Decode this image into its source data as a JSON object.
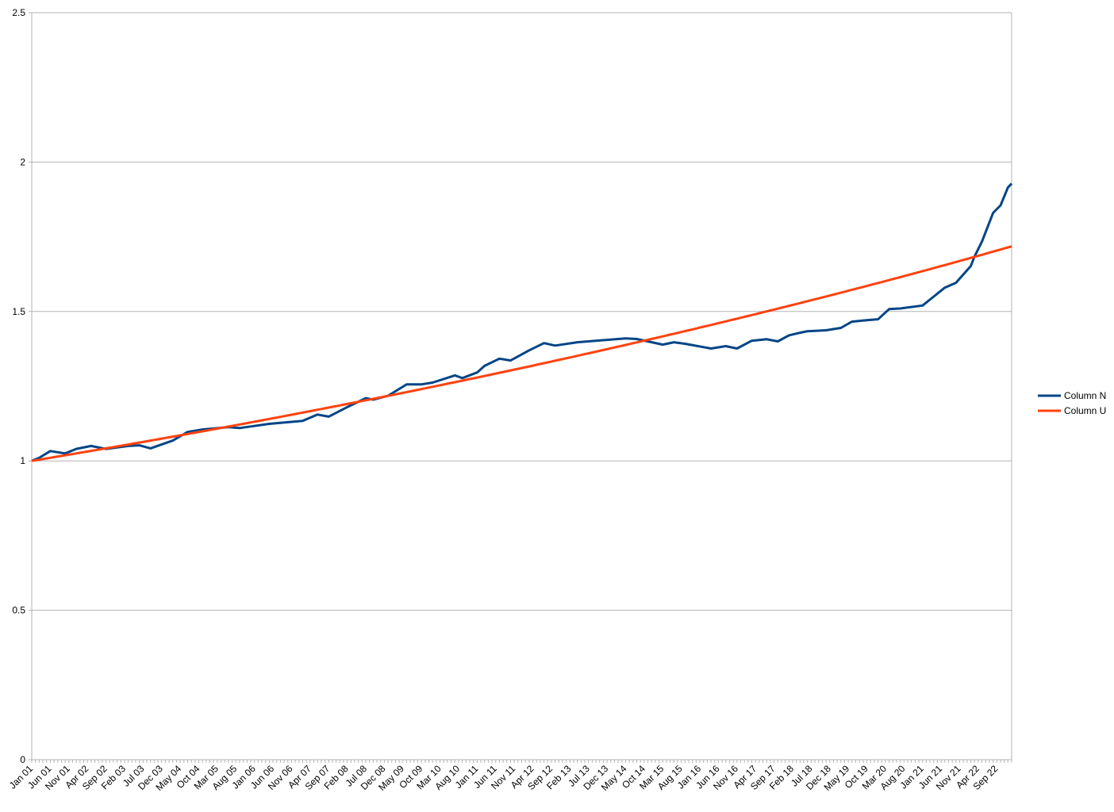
{
  "chart_data": {
    "type": "line",
    "title": "",
    "xlabel": "",
    "ylabel": "",
    "ylim": [
      0,
      2.5
    ],
    "y_ticks": [
      "0",
      "0.5",
      "1",
      "1.5",
      "2",
      "2.5"
    ],
    "y_tick_values": [
      0,
      0.5,
      1,
      1.5,
      2,
      2.5
    ],
    "x_range": [
      "Jan 01",
      "Jan 23"
    ],
    "x_tick_interval": "monthly",
    "x_tick_labels": [
      "Jan 01",
      "Jun 01",
      "Nov 01",
      "Apr 02",
      "Sep 02",
      "Feb 03",
      "Jul 03",
      "Dec 03",
      "May 04",
      "Oct 04",
      "Mar 05",
      "Aug 05",
      "Jan 06",
      "Jun 06",
      "Nov 06",
      "Apr 07",
      "Sep 07",
      "Feb 08",
      "Jul 08",
      "Dec 08",
      "May 09",
      "Oct 09",
      "Mar 10",
      "Aug 10",
      "Jan 11",
      "Jun 11",
      "Nov 11",
      "Apr 12",
      "Sep 12",
      "Feb 13",
      "Jul 13",
      "Dec 13",
      "May 14",
      "Oct 14",
      "Mar 15",
      "Aug 15",
      "Jan 16",
      "Jun 16",
      "Nov 16",
      "Apr 17",
      "Sep 17",
      "Feb 18",
      "Jul 18",
      "Dec 18",
      "May 19",
      "Oct 19",
      "Mar 20",
      "Aug 20",
      "Jan 21",
      "Jun 21",
      "Nov 21",
      "Apr 22",
      "Sep 22"
    ],
    "grid": "horizontal",
    "legend_position": "right",
    "series": [
      {
        "name": "Column N",
        "color": "#004586",
        "points": [
          [
            "Jan 01",
            1.0
          ],
          [
            "Mar 01",
            1.01
          ],
          [
            "Jun 01",
            1.033
          ],
          [
            "Oct 01",
            1.025
          ],
          [
            "Jan 02",
            1.04
          ],
          [
            "May 02",
            1.05
          ],
          [
            "Sep 02",
            1.04
          ],
          [
            "Mar 03",
            1.05
          ],
          [
            "Jun 03",
            1.052
          ],
          [
            "Sep 03",
            1.042
          ],
          [
            "Mar 04",
            1.068
          ],
          [
            "Jul 04",
            1.097
          ],
          [
            "Nov 04",
            1.105
          ],
          [
            "Jun 05",
            1.113
          ],
          [
            "Sep 05",
            1.11
          ],
          [
            "May 06",
            1.124
          ],
          [
            "Feb 07",
            1.134
          ],
          [
            "Jun 07",
            1.155
          ],
          [
            "Sep 07",
            1.148
          ],
          [
            "Feb 08",
            1.18
          ],
          [
            "Jul 08",
            1.21
          ],
          [
            "Sep 08",
            1.205
          ],
          [
            "Jan 09",
            1.218
          ],
          [
            "Jun 09",
            1.256
          ],
          [
            "Oct 09",
            1.256
          ],
          [
            "Jan 10",
            1.262
          ],
          [
            "Jul 10",
            1.286
          ],
          [
            "Sep 10",
            1.277
          ],
          [
            "Jan 11",
            1.296
          ],
          [
            "Mar 11",
            1.318
          ],
          [
            "Jul 11",
            1.342
          ],
          [
            "Oct 11",
            1.336
          ],
          [
            "Mar 12",
            1.37
          ],
          [
            "Jul 12",
            1.394
          ],
          [
            "Oct 12",
            1.386
          ],
          [
            "Apr 13",
            1.397
          ],
          [
            "May 14",
            1.41
          ],
          [
            "Aug 14",
            1.408
          ],
          [
            "Mar 15",
            1.389
          ],
          [
            "Jun 15",
            1.397
          ],
          [
            "Sep 15",
            1.392
          ],
          [
            "Apr 16",
            1.376
          ],
          [
            "Aug 16",
            1.384
          ],
          [
            "Nov 16",
            1.376
          ],
          [
            "Mar 17",
            1.402
          ],
          [
            "Jul 17",
            1.407
          ],
          [
            "Oct 17",
            1.4
          ],
          [
            "Jan 18",
            1.42
          ],
          [
            "Apr 18",
            1.429
          ],
          [
            "Jun 18",
            1.434
          ],
          [
            "Nov 18",
            1.437
          ],
          [
            "Mar 19",
            1.445
          ],
          [
            "Jun 19",
            1.466
          ],
          [
            "Oct 19",
            1.471
          ],
          [
            "Jan 20",
            1.474
          ],
          [
            "Apr 20",
            1.508
          ],
          [
            "Jul 20",
            1.51
          ],
          [
            "Jan 21",
            1.52
          ],
          [
            "Apr 21",
            1.55
          ],
          [
            "Jul 21",
            1.58
          ],
          [
            "Oct 21",
            1.596
          ],
          [
            "Feb 22",
            1.652
          ],
          [
            "Mar 22",
            1.684
          ],
          [
            "May 22",
            1.734
          ],
          [
            "Aug 22",
            1.83
          ],
          [
            "Oct 22",
            1.855
          ],
          [
            "Dec 22",
            1.915
          ],
          [
            "Jan 23",
            1.928
          ]
        ]
      },
      {
        "name": "Column U",
        "color": "#ff420e",
        "points": [
          [
            "Jan 01",
            1.0
          ],
          [
            "Jan 06",
            1.131
          ],
          [
            "Jan 11",
            1.279
          ],
          [
            "Jan 16",
            1.446
          ],
          [
            "Jan 21",
            1.635
          ],
          [
            "Jan 23",
            1.718
          ]
        ]
      }
    ]
  }
}
